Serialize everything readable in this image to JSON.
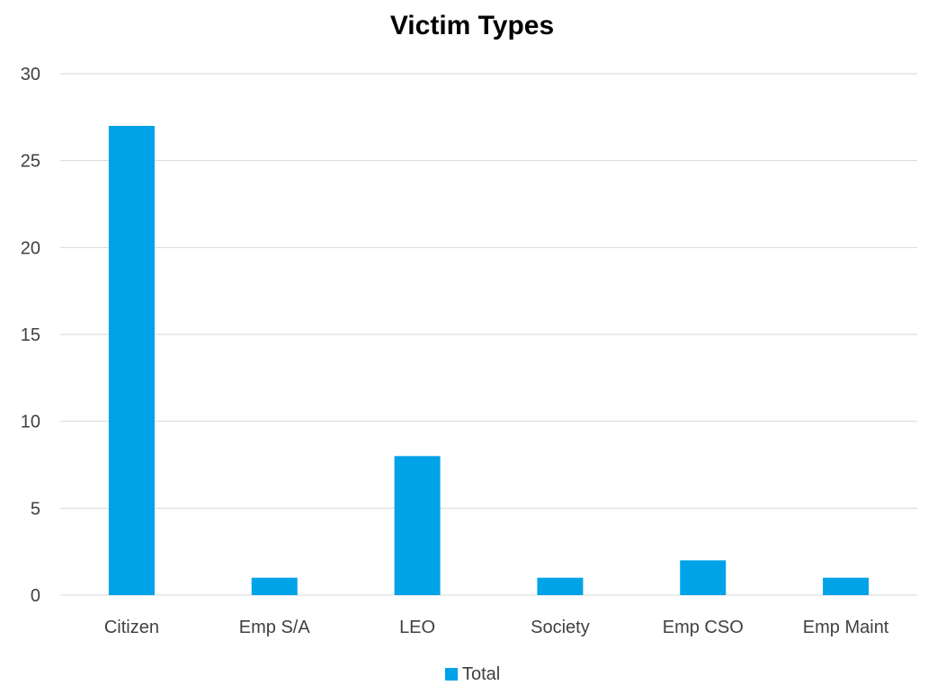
{
  "chart_data": {
    "type": "bar",
    "title": "Victim Types",
    "xlabel": "",
    "ylabel": "",
    "categories": [
      "Citizen",
      "Emp S/A",
      "LEO",
      "Society",
      "Emp CSO",
      "Emp Maint"
    ],
    "series": [
      {
        "name": "Total",
        "values": [
          27,
          1,
          8,
          1,
          2,
          1
        ]
      }
    ],
    "ylim": [
      0,
      30
    ],
    "yticks": [
      0,
      5,
      10,
      15,
      20,
      25,
      30
    ],
    "grid": true,
    "legend_position": "bottom",
    "colors": {
      "bar": "#00a2e8",
      "grid": "#d9d9d9",
      "text": "#404040",
      "title": "#000000"
    }
  }
}
